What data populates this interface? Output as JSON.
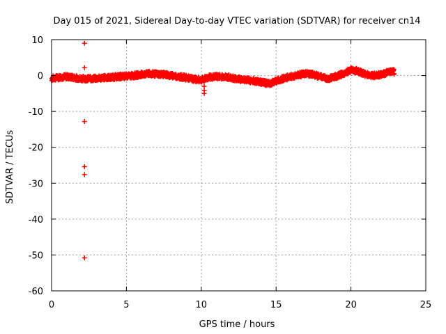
{
  "chart_data": {
    "type": "scatter",
    "title": "Day 015 of 2021, Sidereal Day-to-day VTEC variation (SDTVAR) for receiver cn14",
    "xlabel": "GPS time / hours",
    "ylabel": "SDTVAR / TECUs",
    "xlim": [
      0,
      25
    ],
    "ylim": [
      -60,
      10
    ],
    "xticks": [
      "0",
      "5",
      "10",
      "15",
      "20",
      "25"
    ],
    "yticks": [
      "10",
      "0",
      "-10",
      "-20",
      "-30",
      "-40",
      "-50",
      "-60"
    ],
    "grid": true,
    "marker": "plus",
    "color": "#ff0000",
    "series": [
      {
        "name": "SDTVAR",
        "trend": {
          "x": [
            0,
            0.5,
            1,
            1.5,
            2,
            2.5,
            3,
            3.5,
            4,
            4.5,
            5,
            5.5,
            6,
            6.5,
            7,
            7.5,
            8,
            8.5,
            9,
            9.5,
            10,
            10.5,
            11,
            11.5,
            12,
            12.5,
            13,
            13.5,
            14,
            14.5,
            15,
            15.5,
            16,
            16.5,
            17,
            17.5,
            18,
            18.5,
            19,
            19.5,
            20,
            20.5,
            21,
            21.5,
            22,
            22.5,
            22.9
          ],
          "y": [
            -0.8,
            -0.5,
            -0.3,
            -0.6,
            -0.8,
            -0.9,
            -0.8,
            -0.6,
            -0.5,
            -0.3,
            -0.2,
            0.0,
            0.3,
            0.5,
            0.4,
            0.3,
            0.0,
            -0.3,
            -0.6,
            -1.0,
            -1.2,
            -0.5,
            -0.3,
            -0.3,
            -0.6,
            -1.0,
            -1.2,
            -1.5,
            -1.8,
            -2.3,
            -1.5,
            -0.8,
            -0.3,
            0.2,
            0.5,
            0.2,
            -0.3,
            -0.8,
            -0.2,
            0.5,
            1.6,
            1.2,
            0.3,
            0.0,
            0.2,
            1.0,
            1.0
          ]
        },
        "outliers": {
          "x": [
            2.2,
            2.2,
            2.2,
            2.2,
            2.2,
            2.2,
            10.2,
            10.2,
            10.2
          ],
          "y": [
            9.0,
            2.2,
            -12.8,
            -25.4,
            -27.6,
            -50.8,
            -3.0,
            -4.2,
            -5.0
          ]
        }
      }
    ]
  }
}
